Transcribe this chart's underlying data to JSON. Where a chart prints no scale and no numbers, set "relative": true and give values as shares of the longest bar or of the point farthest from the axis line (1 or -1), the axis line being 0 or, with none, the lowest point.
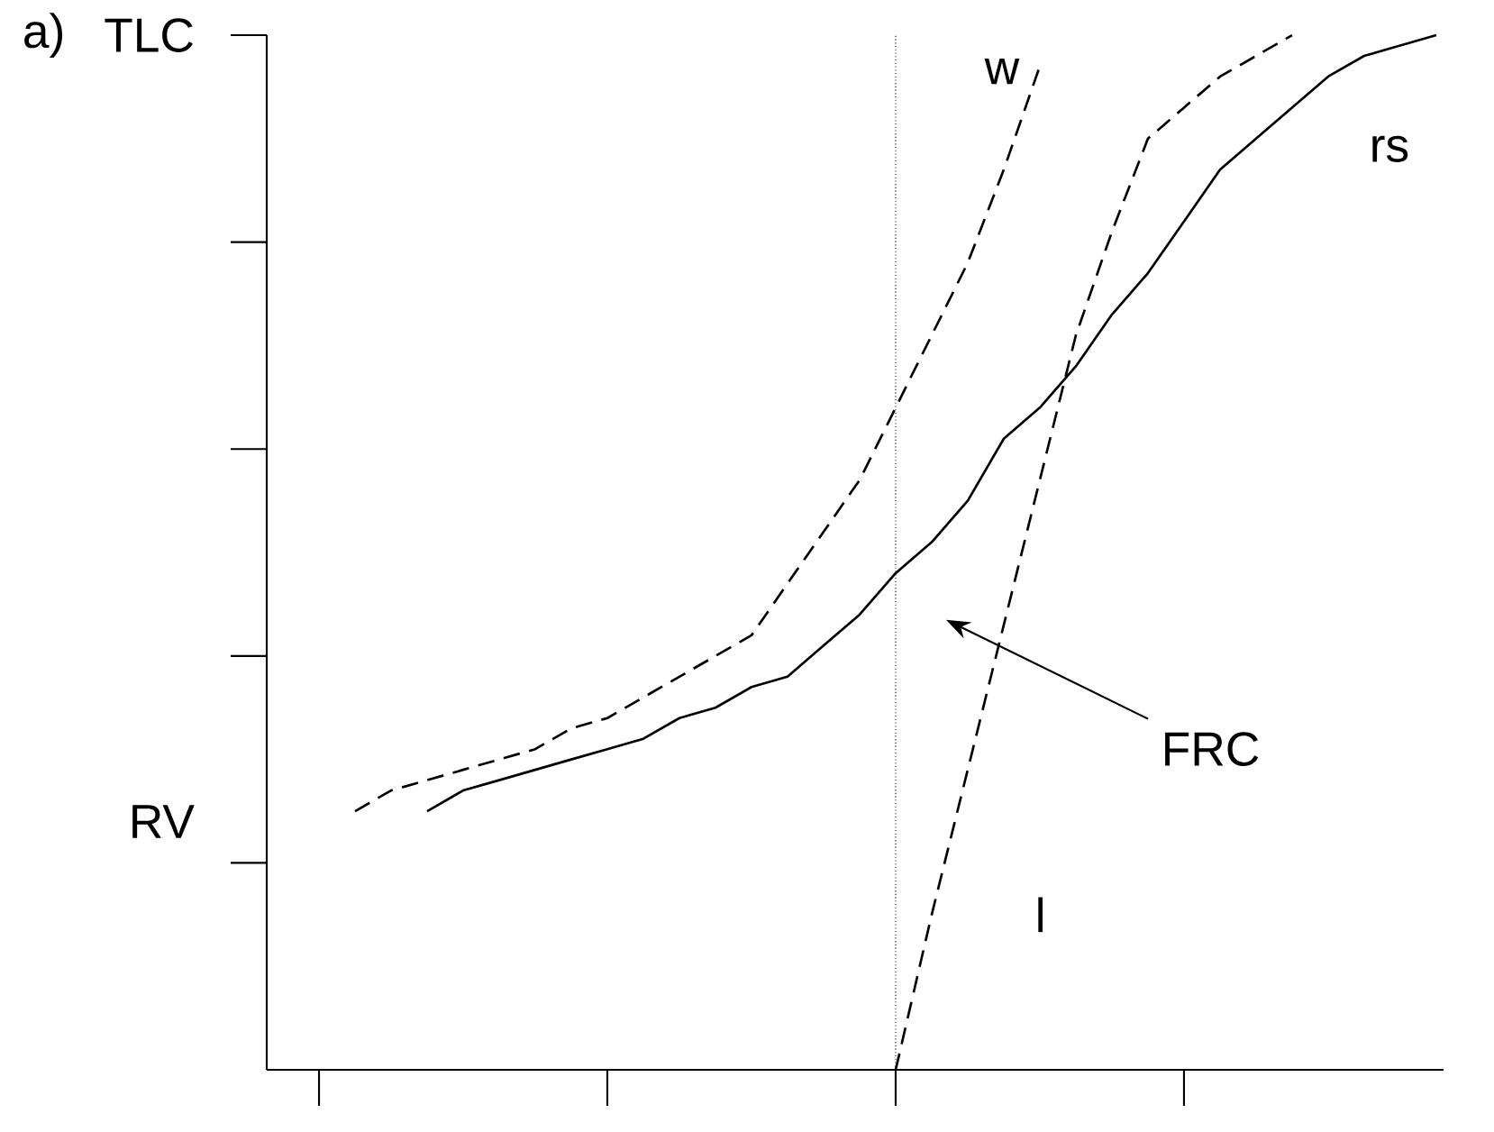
{
  "chart_data": {
    "type": "line",
    "title": "a)",
    "relative": true,
    "legend": false,
    "marker": "none",
    "categories": [
      null,
      null,
      null,
      null,
      null,
      null,
      null,
      null,
      null,
      null,
      null,
      null,
      null,
      null,
      null,
      null,
      null,
      null,
      null,
      null,
      null,
      null,
      null,
      null,
      null,
      null,
      null,
      null,
      null,
      null,
      null,
      null
    ],
    "annotations": [
      "TLC",
      "RV",
      "FRC"
    ],
    "series": [
      {
        "name": "rs",
        "color": "#000000",
        "line_style": "solid",
        "values": [
          null,
          null,
          null,
          0.25,
          0.27,
          0.28,
          0.29,
          0.3,
          0.31,
          0.32,
          0.34,
          0.35,
          0.37,
          0.38,
          0.41,
          0.44,
          0.48,
          0.51,
          0.55,
          0.61,
          0.64,
          0.68,
          0.73,
          0.77,
          0.82,
          0.87,
          0.9,
          0.93,
          0.96,
          0.98,
          0.99,
          1
        ]
      },
      {
        "name": "w",
        "color": "#000000",
        "line_style": "dashed",
        "values": [
          null,
          0.25,
          0.27,
          0.28,
          0.29,
          0.3,
          0.31,
          0.33,
          0.34,
          0.36,
          0.38,
          0.4,
          0.42,
          0.47,
          0.52,
          0.57,
          0.64,
          0.71,
          0.78,
          0.87,
          0.97,
          null,
          null,
          null,
          null,
          null,
          null,
          null,
          null,
          null,
          null,
          null
        ]
      },
      {
        "name": "l",
        "color": "#000000",
        "line_style": "dashed",
        "values": [
          null,
          null,
          null,
          null,
          null,
          null,
          null,
          null,
          null,
          null,
          null,
          null,
          null,
          null,
          null,
          null,
          0,
          0.15,
          0.29,
          0.43,
          0.57,
          0.71,
          0.81,
          0.9,
          0.93,
          0.96,
          0.98,
          1,
          null,
          null,
          null,
          null
        ]
      }
    ]
  }
}
